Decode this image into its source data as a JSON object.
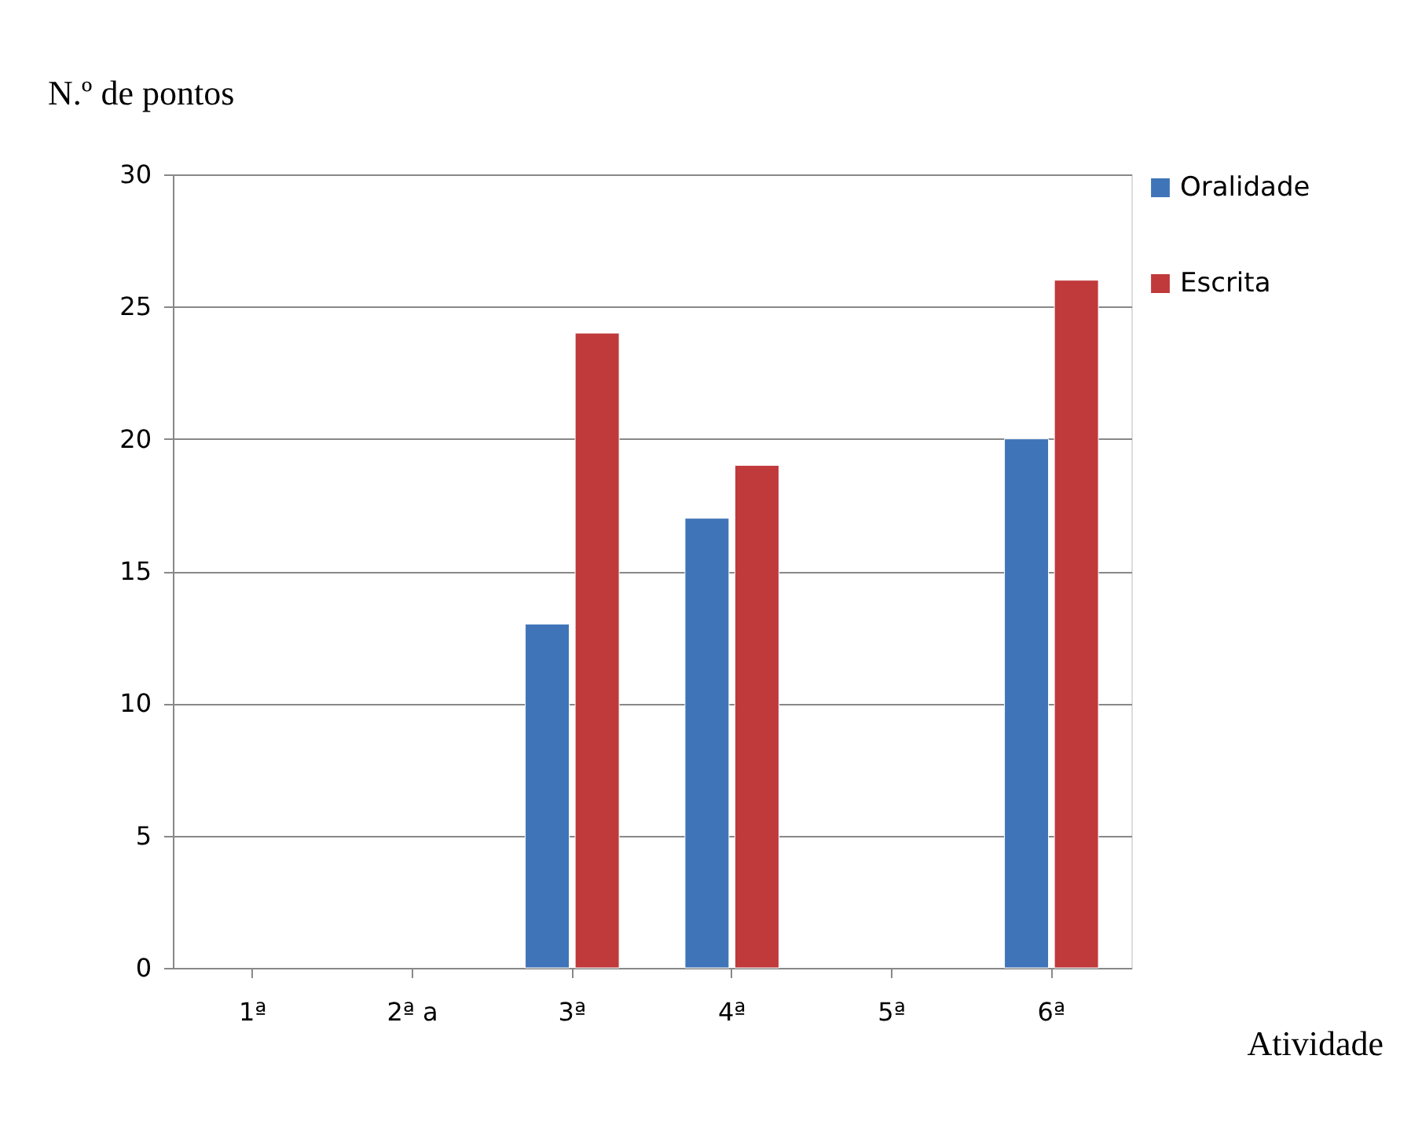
{
  "chart_data": {
    "type": "bar",
    "ylabel": "N.º de pontos",
    "xlabel": "Atividade",
    "categories": [
      "1ª",
      "2ª a",
      "3ª",
      "4ª",
      "5ª",
      "6ª"
    ],
    "series": [
      {
        "name": "Oralidade",
        "color": "#3f74b8",
        "values": [
          null,
          null,
          13,
          17,
          null,
          20
        ]
      },
      {
        "name": "Escrita",
        "color": "#c0393b",
        "values": [
          null,
          null,
          24,
          19,
          null,
          26
        ]
      }
    ],
    "ylim": [
      0,
      30
    ],
    "yticks": [
      0,
      5,
      10,
      15,
      20,
      25,
      30
    ],
    "grid": "y",
    "legend": "right"
  }
}
